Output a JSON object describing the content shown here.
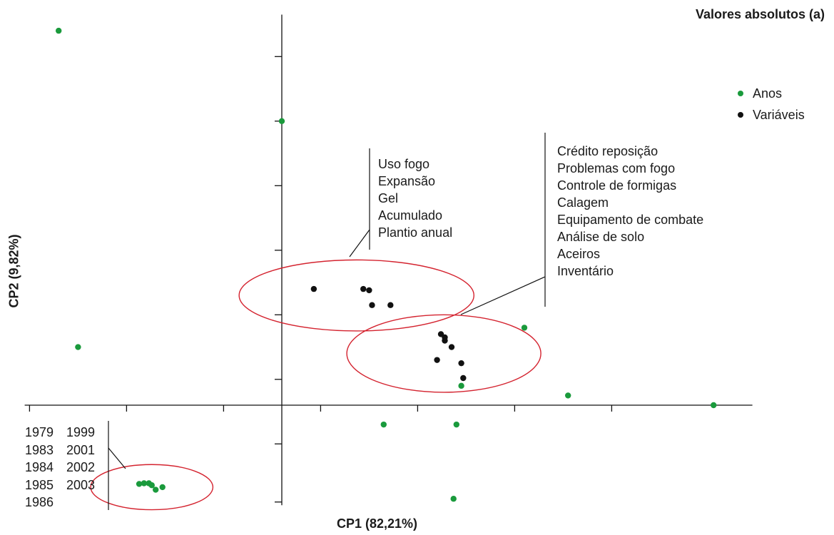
{
  "chart_data": {
    "type": "scatter",
    "title": "Valores absolutos (a)",
    "xlabel": "CP1 (82,21%)",
    "ylabel": "CP2 (9,82%)",
    "xlim": [
      -2.65,
      4.85
    ],
    "ylim": [
      -1.55,
      6.05
    ],
    "x_ticks": [
      -2.6,
      -1.6,
      -0.6,
      0.4,
      1.4,
      2.4,
      3.4
    ],
    "y_ticks": [
      -1.5,
      -0.6,
      0.4,
      1.4,
      2.4,
      3.4,
      4.4,
      5.4
    ],
    "grid": false,
    "legend_position": "top-right",
    "colors": {
      "anos": "#1a9a3c",
      "variaveis": "#111111",
      "circles": "#d4232f",
      "axes": "#111111"
    },
    "series": [
      {
        "name": "Anos",
        "points": [
          [
            -2.3,
            5.8
          ],
          [
            0.0,
            4.4
          ],
          [
            -2.1,
            0.9
          ],
          [
            2.5,
            1.2
          ],
          [
            1.85,
            0.3
          ],
          [
            2.95,
            0.15
          ],
          [
            4.45,
            0.0
          ],
          [
            1.05,
            -0.3
          ],
          [
            1.8,
            -0.3
          ],
          [
            1.77,
            -1.45
          ],
          [
            -1.47,
            -1.22
          ],
          [
            -1.42,
            -1.21
          ],
          [
            -1.37,
            -1.21
          ],
          [
            -1.34,
            -1.24
          ],
          [
            -1.3,
            -1.31
          ],
          [
            -1.23,
            -1.27
          ]
        ]
      },
      {
        "name": "Variáveis",
        "points": [
          [
            0.33,
            1.8
          ],
          [
            0.84,
            1.8
          ],
          [
            0.9,
            1.78
          ],
          [
            0.93,
            1.55
          ],
          [
            1.12,
            1.55
          ],
          [
            1.64,
            1.1
          ],
          [
            1.68,
            1.05
          ],
          [
            1.68,
            1.0
          ],
          [
            1.75,
            0.9
          ],
          [
            1.6,
            0.7
          ],
          [
            1.85,
            0.65
          ],
          [
            1.87,
            0.42
          ]
        ]
      }
    ],
    "clusters": [
      {
        "center": [
          0.77,
          1.7
        ],
        "rx": 1.21,
        "ry": 0.55
      },
      {
        "center": [
          1.67,
          0.8
        ],
        "rx": 1.0,
        "ry": 0.6
      },
      {
        "center": [
          -1.34,
          -1.27
        ],
        "rx": 0.63,
        "ry": 0.35
      }
    ],
    "annotations": {
      "group_1": [
        "Uso fogo",
        "Expansão",
        "Gel",
        "Acumulado",
        "Plantio anual"
      ],
      "group_2": [
        "Crédito reposição",
        "Problemas com fogo",
        "Controle de formigas",
        "Calagem",
        "Equipamento de combate",
        "Análise de solo",
        "Aceiros",
        "Inventário"
      ],
      "years": [
        [
          "1979",
          "1999"
        ],
        [
          "1983",
          "2001"
        ],
        [
          "1984",
          "2002"
        ],
        [
          "1985",
          "2003"
        ],
        [
          "1986",
          ""
        ]
      ]
    }
  }
}
